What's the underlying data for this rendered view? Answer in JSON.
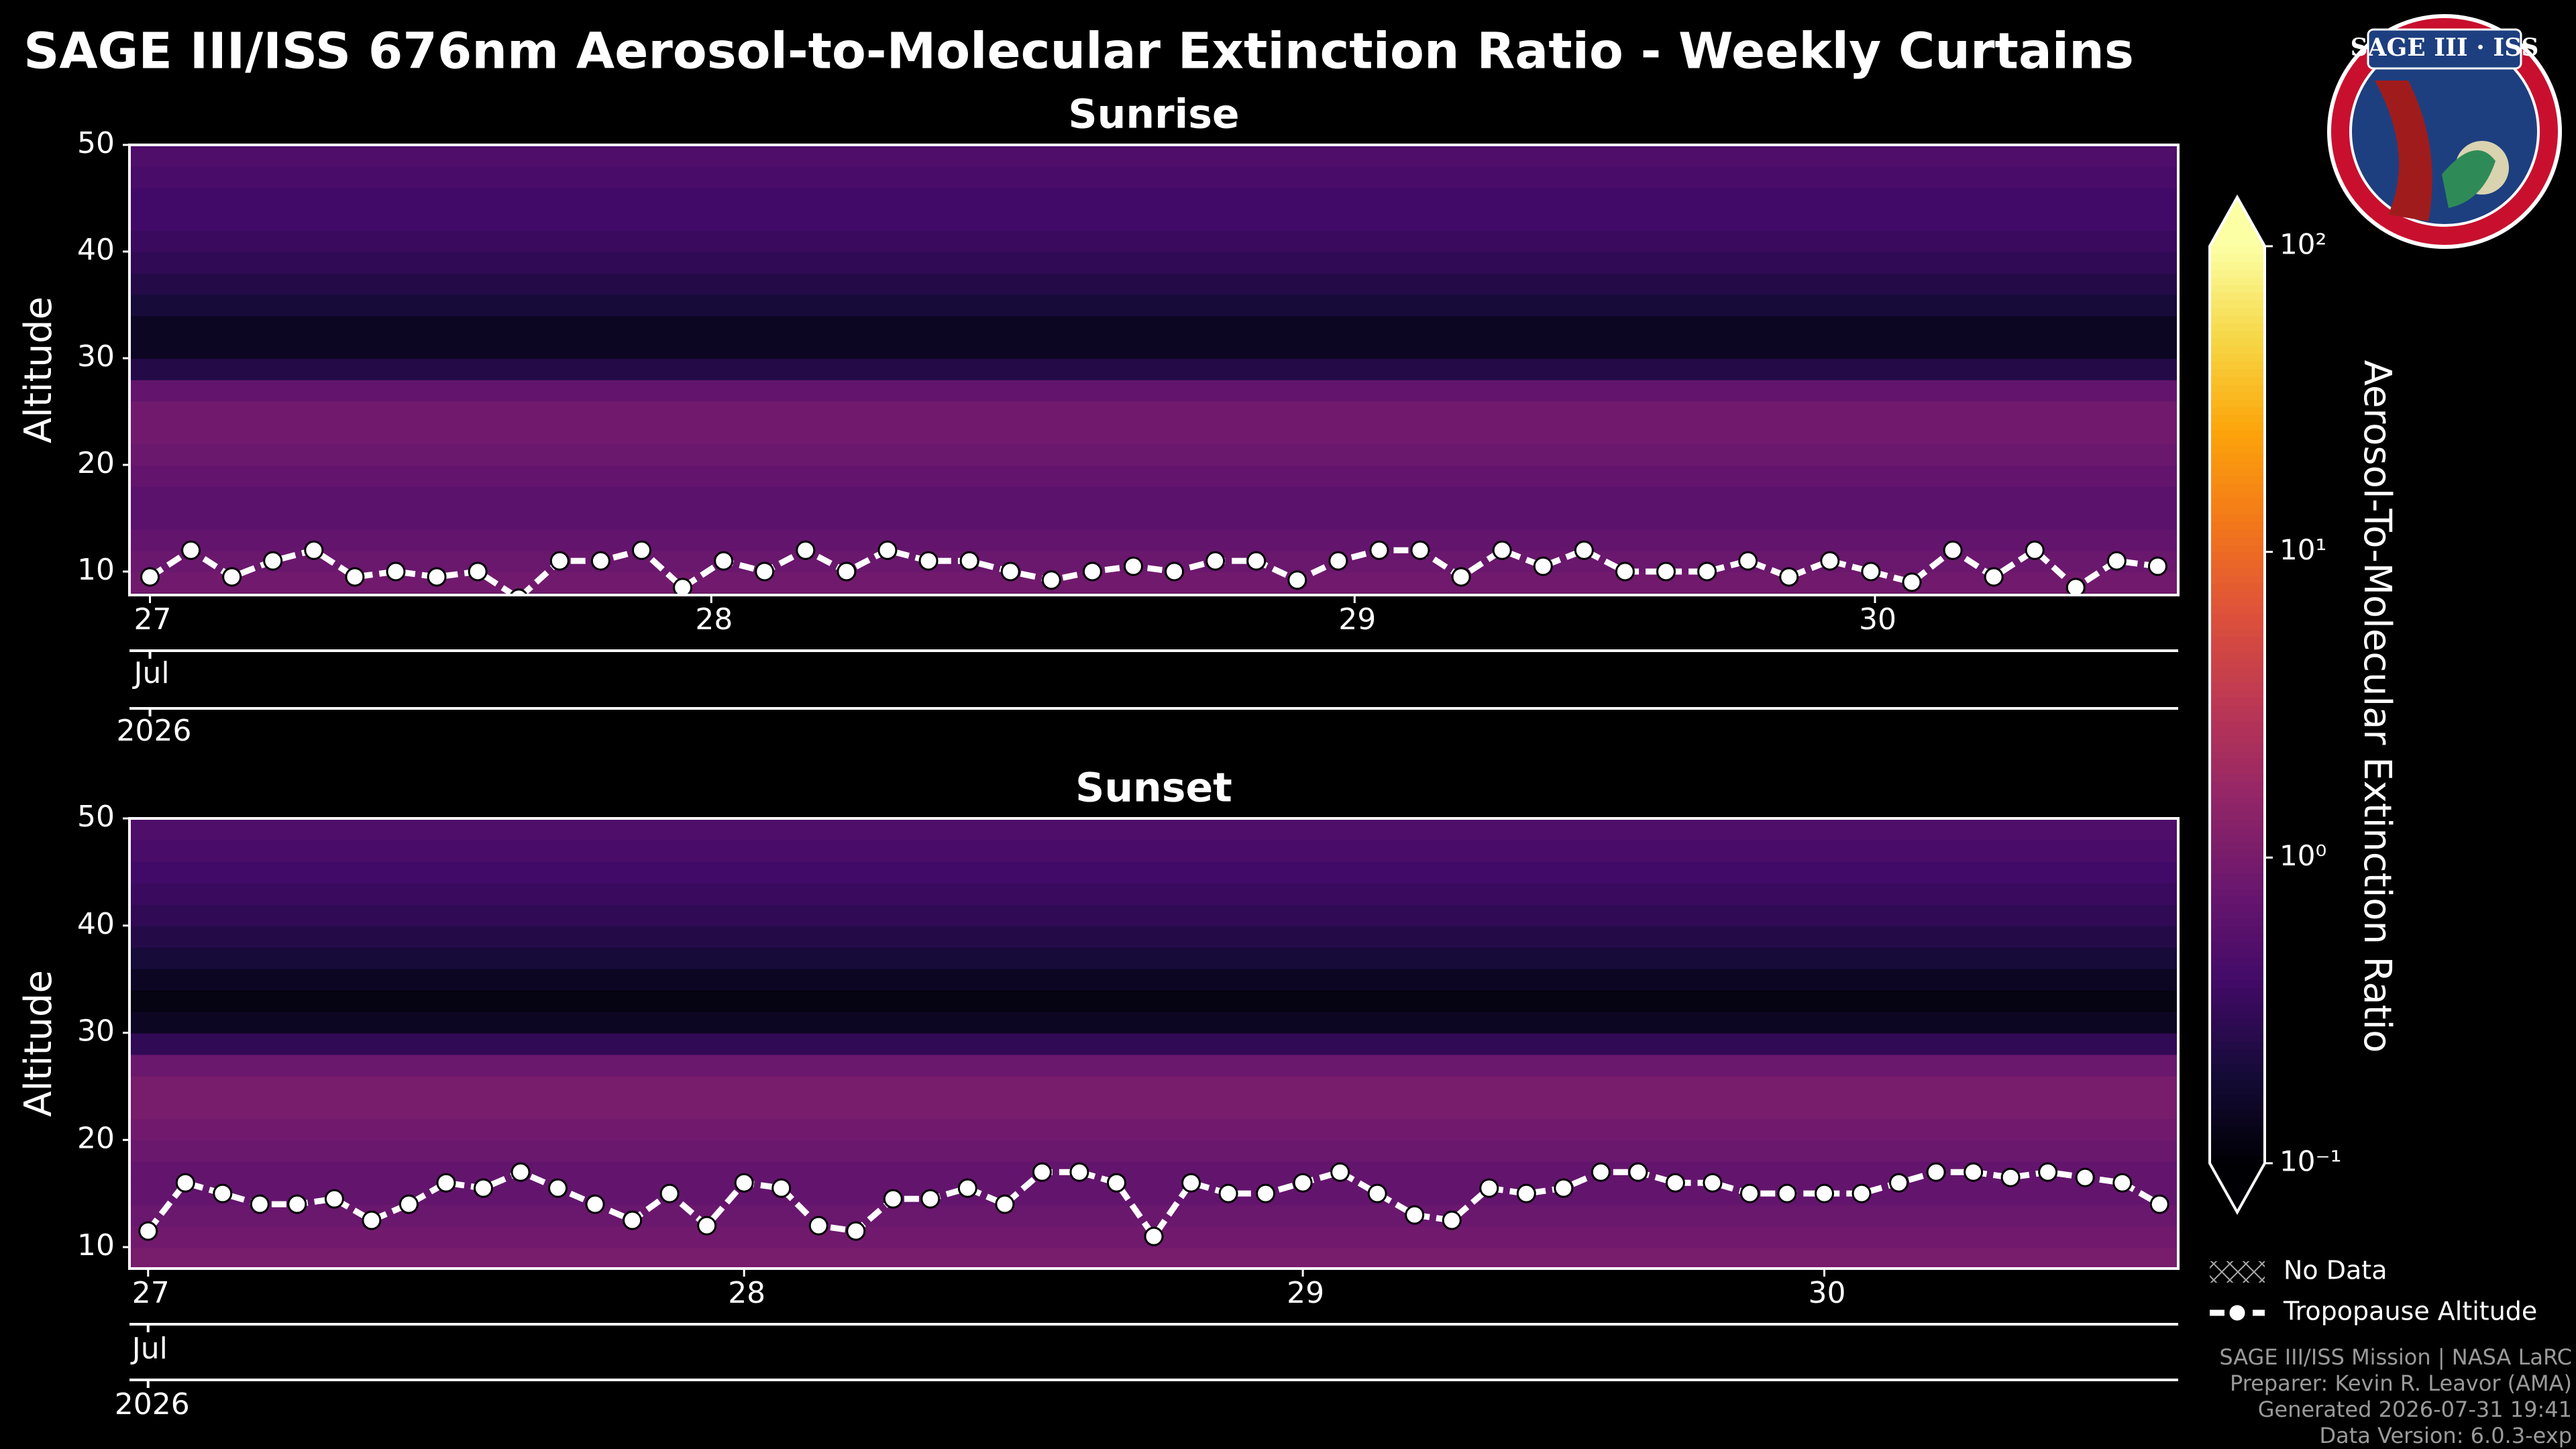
{
  "title": "SAGE III/ISS 676nm Aerosol-to-Molecular Extinction Ratio - Weekly Curtains",
  "logo_text": "SAGE III · ISS",
  "no_data_label": "No Data",
  "footer": [
    "SAGE III/ISS Mission | NASA LaRC",
    "Preparer: Kevin R. Leavor (AMA)",
    "Generated 2026-07-31 19:41",
    "Data Version: 6.0.3-exp"
  ],
  "colorbar": {
    "label": "Aerosol-To-Molecular Extinction Ratio",
    "log": true,
    "lim": [
      0.1,
      100
    ],
    "ticks": [
      {
        "value": 0.1,
        "label": "10⁻¹"
      },
      {
        "value": 1,
        "label": "10⁰"
      },
      {
        "value": 10,
        "label": "10¹"
      },
      {
        "value": 100,
        "label": "10²"
      }
    ]
  },
  "chart_data": [
    {
      "type": "heatmap",
      "title": "Sunrise",
      "ylabel": "Altitude",
      "ylim": [
        7.8,
        50
      ],
      "yticks": [
        10,
        20,
        30,
        40,
        50
      ],
      "xlim": [
        -0.5,
        49.5
      ],
      "xticks": [
        {
          "value": 0,
          "label": "27"
        },
        {
          "value": 13.7,
          "label": "28"
        },
        {
          "value": 29.4,
          "label": "29"
        },
        {
          "value": 42.1,
          "label": "30"
        }
      ],
      "month_label": "Jul",
      "year_label": "2026",
      "altitude_bins": [
        8,
        10,
        12,
        14,
        16,
        18,
        20,
        22,
        24,
        26,
        28,
        30,
        32,
        34,
        36,
        38,
        40,
        42,
        44,
        46,
        48,
        50
      ],
      "ratio_profile": [
        0.9,
        0.8,
        0.7,
        0.6,
        0.6,
        0.7,
        0.8,
        0.9,
        0.9,
        0.7,
        0.25,
        0.15,
        0.15,
        0.2,
        0.25,
        0.3,
        0.35,
        0.4,
        0.4,
        0.45,
        0.5
      ],
      "series": [
        {
          "name": "Tropopause Altitude",
          "color": "#ffffff",
          "values": [
            9.5,
            12,
            9.5,
            11,
            12,
            9.5,
            10,
            9.5,
            10,
            7.5,
            11,
            11,
            12,
            8.5,
            11,
            10,
            12,
            10,
            12,
            11,
            11,
            10,
            9.2,
            10,
            10.5,
            10,
            11,
            11,
            9.2,
            11,
            12,
            12,
            9.5,
            12,
            10.5,
            12,
            10,
            10,
            10,
            11,
            9.5,
            11,
            10,
            9,
            12,
            9.5,
            12,
            8.5,
            11,
            10.5
          ]
        }
      ]
    },
    {
      "type": "heatmap",
      "title": "Sunset",
      "ylabel": "Altitude",
      "ylim": [
        8,
        50
      ],
      "yticks": [
        10,
        20,
        30,
        40,
        50
      ],
      "xlim": [
        -0.5,
        54.5
      ],
      "xticks": [
        {
          "value": 0,
          "label": "27"
        },
        {
          "value": 16,
          "label": "28"
        },
        {
          "value": 31,
          "label": "29"
        },
        {
          "value": 45,
          "label": "30"
        }
      ],
      "month_label": "Jul",
      "year_label": "2026",
      "altitude_bins": [
        8,
        10,
        12,
        14,
        16,
        18,
        20,
        22,
        24,
        26,
        28,
        30,
        32,
        34,
        36,
        38,
        40,
        42,
        44,
        46,
        48,
        50
      ],
      "ratio_profile": [
        1.0,
        0.9,
        0.8,
        0.7,
        0.7,
        0.8,
        0.9,
        1.0,
        1.0,
        0.8,
        0.3,
        0.15,
        0.12,
        0.15,
        0.2,
        0.25,
        0.3,
        0.35,
        0.4,
        0.45,
        0.5
      ],
      "series": [
        {
          "name": "Tropopause Altitude",
          "color": "#ffffff",
          "values": [
            11.5,
            16,
            15,
            14,
            14,
            14.5,
            12.5,
            14,
            16,
            15.5,
            17,
            15.5,
            14,
            12.5,
            15,
            12,
            16,
            15.5,
            12,
            11.5,
            14.5,
            14.5,
            15.5,
            14,
            17,
            17,
            16,
            11,
            16,
            15,
            15,
            16,
            17,
            15,
            13,
            12.5,
            15.5,
            15,
            15.5,
            17,
            17,
            16,
            16,
            15,
            15,
            15,
            15,
            16,
            17,
            17,
            16.5,
            17,
            16.5,
            16,
            14
          ]
        }
      ]
    }
  ]
}
